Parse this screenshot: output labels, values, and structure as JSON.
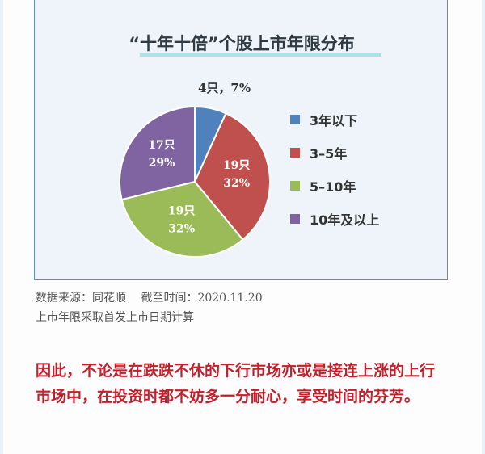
{
  "chart_data": {
    "type": "pie",
    "title": "“十年十倍”个股上市年限分布",
    "categories": [
      "3年以下",
      "3–5年",
      "5–10年",
      "10年及以上"
    ],
    "values": [
      4,
      19,
      19,
      17
    ],
    "percent_labels": [
      "7%",
      "32%",
      "32%",
      "29%"
    ],
    "count_labels": [
      "4只",
      "19只",
      "19只",
      "17只"
    ],
    "outer_label": "4只，7%",
    "colors": [
      "#4f81bd",
      "#c0504d",
      "#9bbb59",
      "#8064a2"
    ],
    "legend_position": "right"
  },
  "notes": {
    "source": "数据来源：同花顺　 截至时间：2020.11.20",
    "method": "上市年限采取首发上市日期计算"
  },
  "conclusion": "因此，不论是在跌跌不休的下行市场亦或是接连上涨的上行市场中，在投资时都不妨多一分耐心，享受时间的芬芳。"
}
